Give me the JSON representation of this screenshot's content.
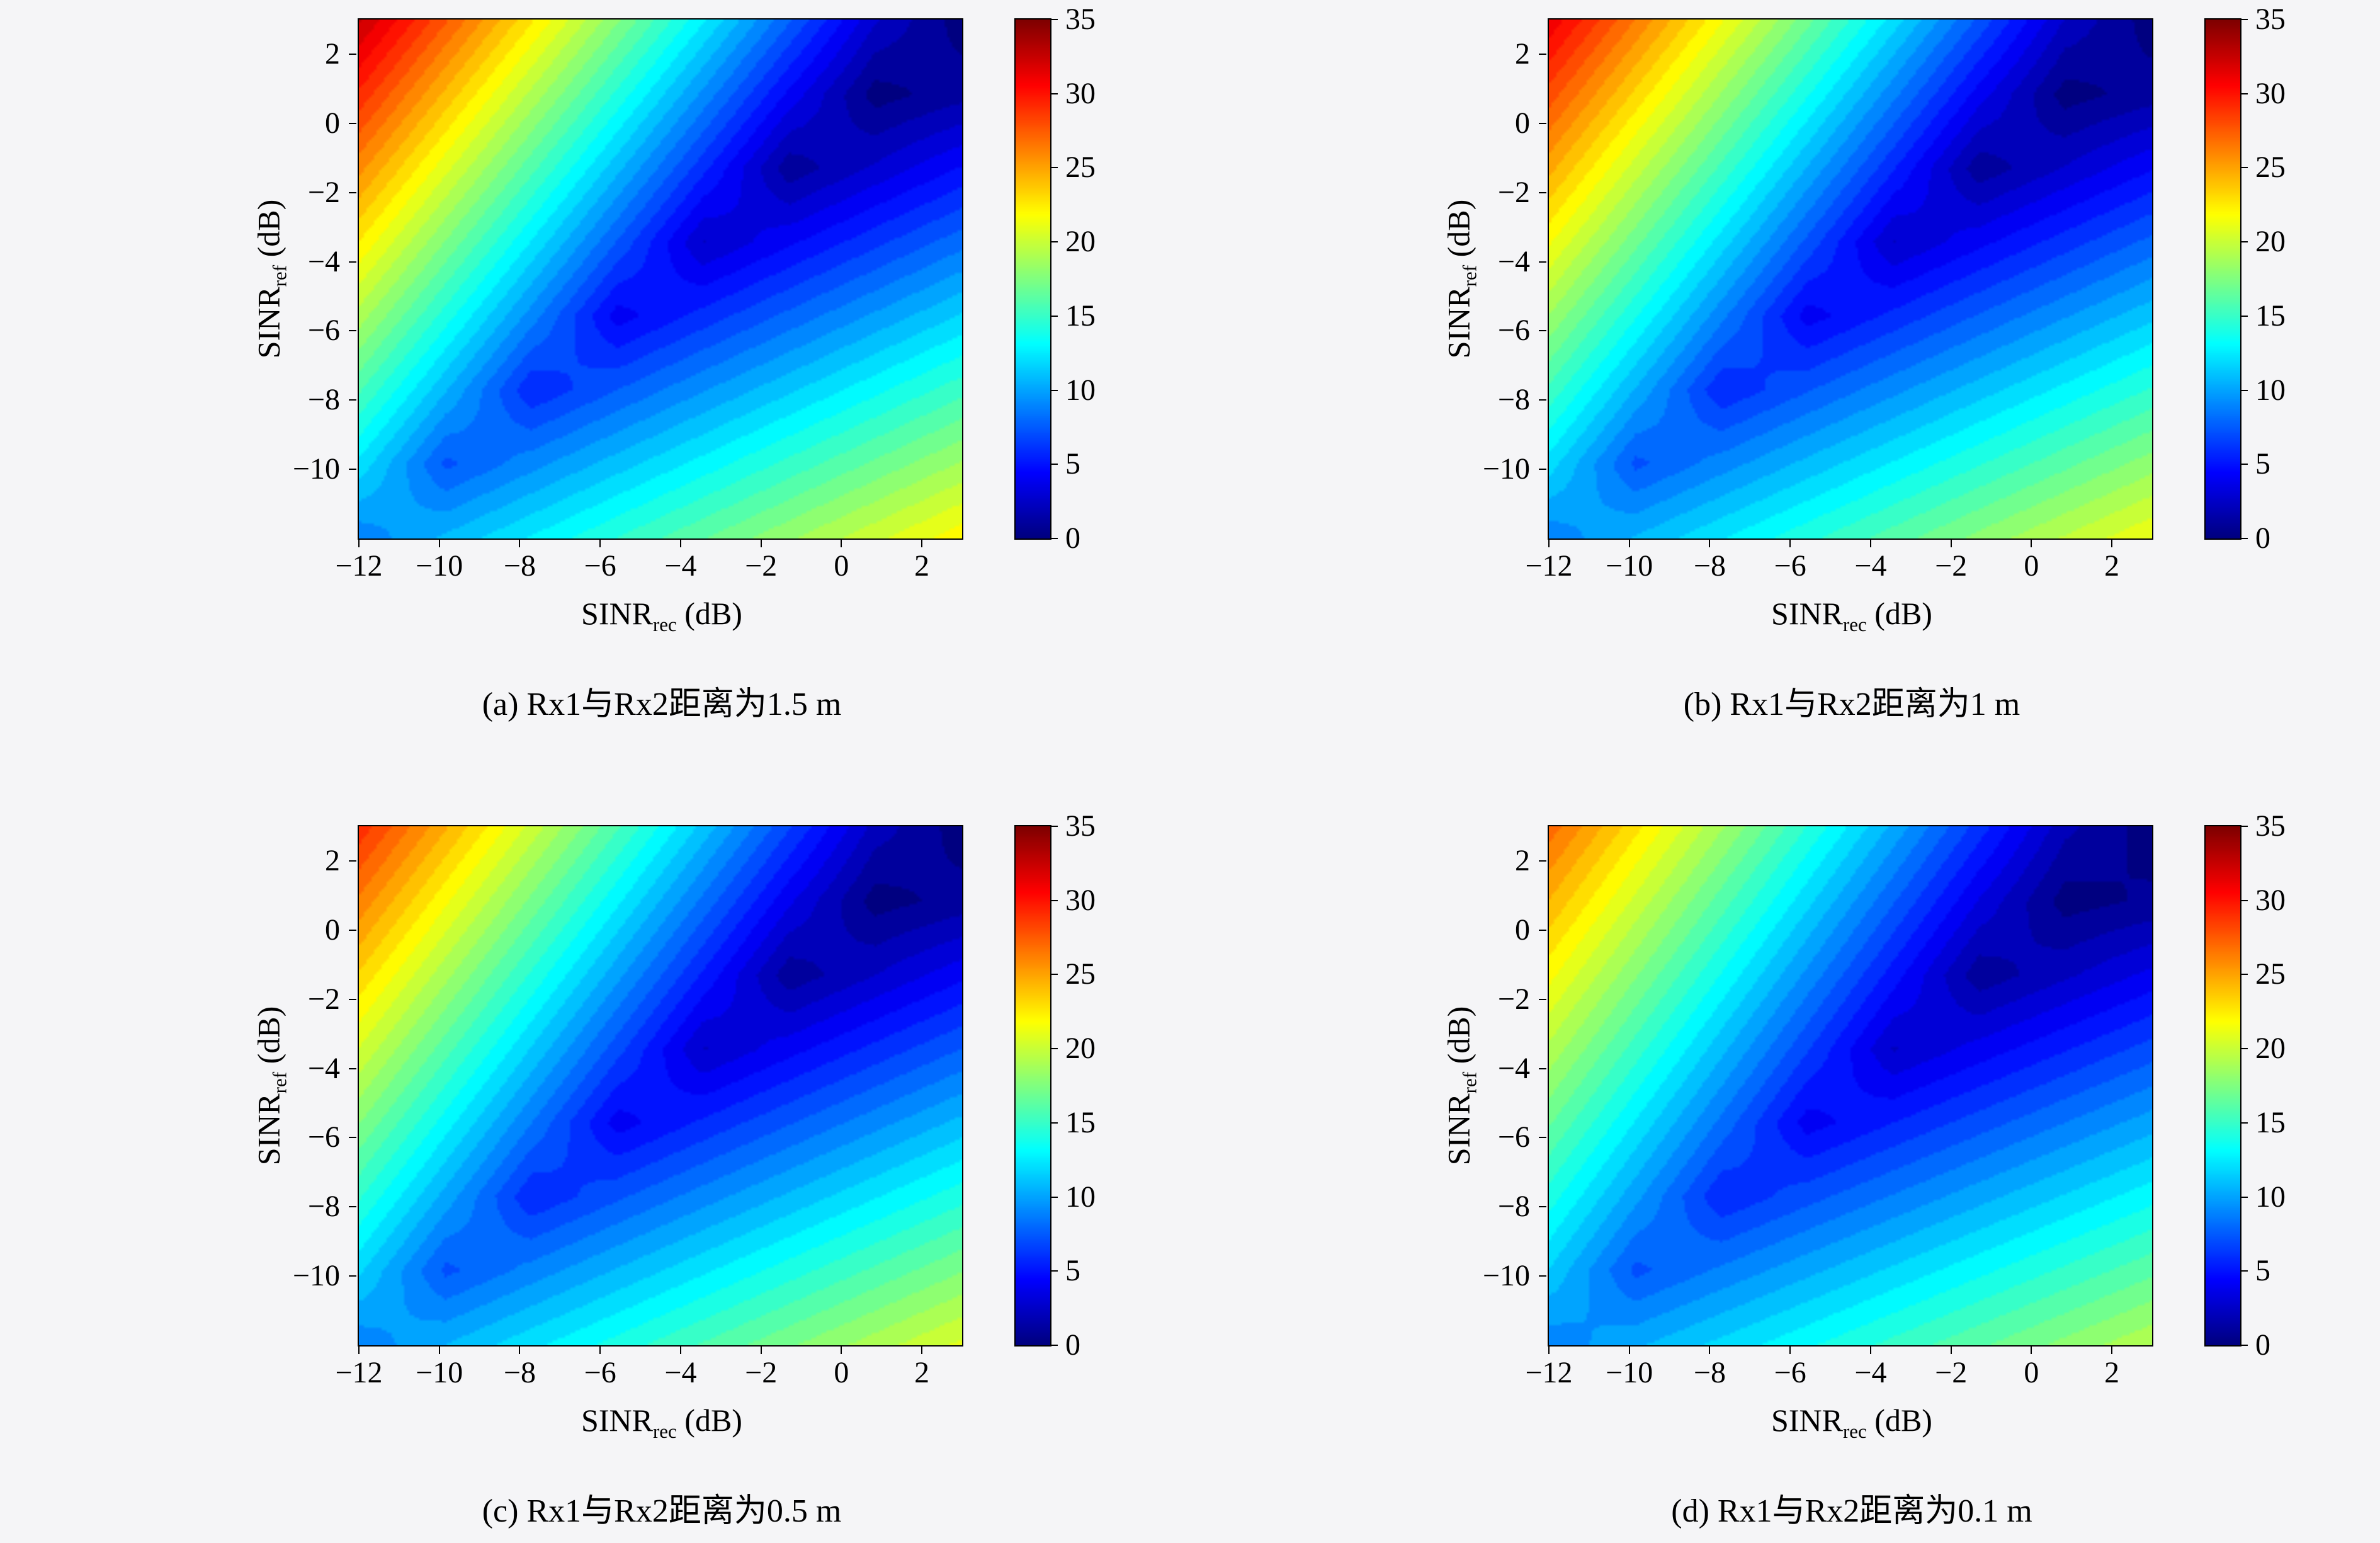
{
  "colors": {
    "background": "#f5f5f7",
    "axis": "#000000"
  },
  "chart_data": {
    "type": "heatmap",
    "layout": "2x2",
    "colormap": "jet",
    "zlim": [
      0,
      35
    ],
    "colorbar_ticks": [
      35,
      30,
      25,
      20,
      15,
      10,
      5,
      0
    ],
    "x_range": [
      -12,
      3
    ],
    "y_range": [
      -12,
      3
    ],
    "x_ticks": [
      -12,
      -10,
      -8,
      -6,
      -4,
      -2,
      0,
      2
    ],
    "y_ticks": [
      2,
      0,
      -2,
      -4,
      -6,
      -8,
      -10
    ],
    "xlabel": "SINR_rec (dB)",
    "ylabel": "SINR_ref (dB)",
    "xlabel_parts": {
      "base": "SINR",
      "sub": "rec",
      "rest": " (dB)"
    },
    "ylabel_parts": {
      "base": "SINR",
      "sub": "ref",
      "rest": " (dB)"
    },
    "grid_x": [
      -11,
      -9,
      -7,
      -5,
      -3,
      -1,
      1,
      3
    ],
    "grid_y": [
      3,
      1,
      -1,
      -3,
      -5,
      -7,
      -9,
      -11
    ],
    "subplots": [
      {
        "caption": "(a) Rx1与Rx2距离为1.5 m",
        "values": [
          [
            32.6,
            27.6,
            22.6,
            17.6,
            12.6,
            7.6,
            2.6,
            0
          ],
          [
            29.2,
            24.2,
            19.2,
            14.2,
            9.2,
            4.2,
            0,
            1.1
          ],
          [
            25.8,
            20.8,
            15.8,
            10.8,
            5.8,
            0.8,
            2.7,
            4.6
          ],
          [
            22.4,
            17.4,
            12.4,
            7.4,
            2.4,
            4.3,
            6.2,
            8.1
          ],
          [
            19.0,
            14.0,
            9.0,
            4.0,
            5.9,
            7.8,
            9.7,
            11.6
          ],
          [
            15.6,
            10.6,
            5.6,
            7.5,
            9.4,
            11.3,
            13.2,
            15.1
          ],
          [
            12.2,
            7.2,
            9.1,
            11.0,
            12.9,
            14.8,
            16.7,
            18.6
          ],
          [
            8.8,
            10.7,
            12.6,
            14.5,
            16.4,
            18.3,
            20.2,
            22.1
          ]
        ]
      },
      {
        "caption": "(b) Rx1与Rx2距离为1 m",
        "values": [
          [
            31.2,
            26.4,
            21.6,
            16.8,
            12.0,
            7.2,
            2.4,
            0
          ],
          [
            28.0,
            23.2,
            18.4,
            13.6,
            8.8,
            4.0,
            0,
            1.0
          ],
          [
            24.8,
            20.0,
            15.2,
            10.4,
            5.6,
            0.8,
            2.6,
            4.4
          ],
          [
            21.6,
            16.8,
            12.0,
            7.2,
            2.4,
            4.2,
            6.0,
            7.8
          ],
          [
            18.4,
            13.6,
            8.8,
            4.0,
            5.8,
            7.6,
            9.4,
            11.2
          ],
          [
            15.2,
            10.4,
            5.6,
            7.4,
            9.2,
            11.0,
            12.8,
            14.6
          ],
          [
            12.0,
            7.2,
            9.0,
            10.8,
            12.6,
            14.4,
            16.2,
            18.0
          ],
          [
            8.8,
            10.6,
            12.4,
            14.2,
            16.0,
            17.8,
            19.6,
            21.4
          ]
        ]
      },
      {
        "caption": "(c) Rx1与Rx2距离为0.5 m",
        "values": [
          [
            29.1,
            24.6,
            20.1,
            15.6,
            11.1,
            6.6,
            2.1,
            0
          ],
          [
            26.2,
            21.7,
            17.2,
            12.7,
            8.2,
            3.7,
            0,
            0.9
          ],
          [
            23.3,
            18.8,
            14.3,
            9.8,
            5.3,
            0.8,
            2.5,
            4.2
          ],
          [
            20.4,
            15.9,
            11.4,
            6.9,
            2.4,
            4.1,
            5.8,
            7.5
          ],
          [
            17.5,
            13.0,
            8.5,
            4.0,
            5.7,
            7.4,
            9.1,
            10.8
          ],
          [
            14.6,
            10.1,
            5.6,
            7.3,
            9.0,
            10.7,
            12.4,
            14.1
          ],
          [
            11.7,
            7.2,
            8.9,
            10.6,
            12.3,
            14.0,
            15.7,
            17.4
          ],
          [
            8.8,
            10.5,
            12.2,
            13.9,
            15.6,
            17.3,
            19.0,
            20.7
          ]
        ]
      },
      {
        "caption": "(d) Rx1与Rx2距离为0.1 m",
        "values": [
          [
            27.0,
            22.8,
            18.6,
            14.4,
            10.2,
            6.0,
            1.8,
            0
          ],
          [
            24.4,
            20.2,
            16.0,
            11.8,
            7.6,
            3.4,
            0,
            0.7
          ],
          [
            21.8,
            17.6,
            13.4,
            9.2,
            5.0,
            0.8,
            2.3,
            3.8
          ],
          [
            19.2,
            15.0,
            10.8,
            6.6,
            2.4,
            3.9,
            5.4,
            6.9
          ],
          [
            16.6,
            12.4,
            8.2,
            4.0,
            5.5,
            7.0,
            8.5,
            10.0
          ],
          [
            14.0,
            9.8,
            5.6,
            7.1,
            8.6,
            10.1,
            11.6,
            13.1
          ],
          [
            11.4,
            7.2,
            8.7,
            10.2,
            11.7,
            13.2,
            14.7,
            16.2
          ],
          [
            8.8,
            10.3,
            11.8,
            13.3,
            14.8,
            16.3,
            17.8,
            19.3
          ]
        ]
      }
    ]
  }
}
